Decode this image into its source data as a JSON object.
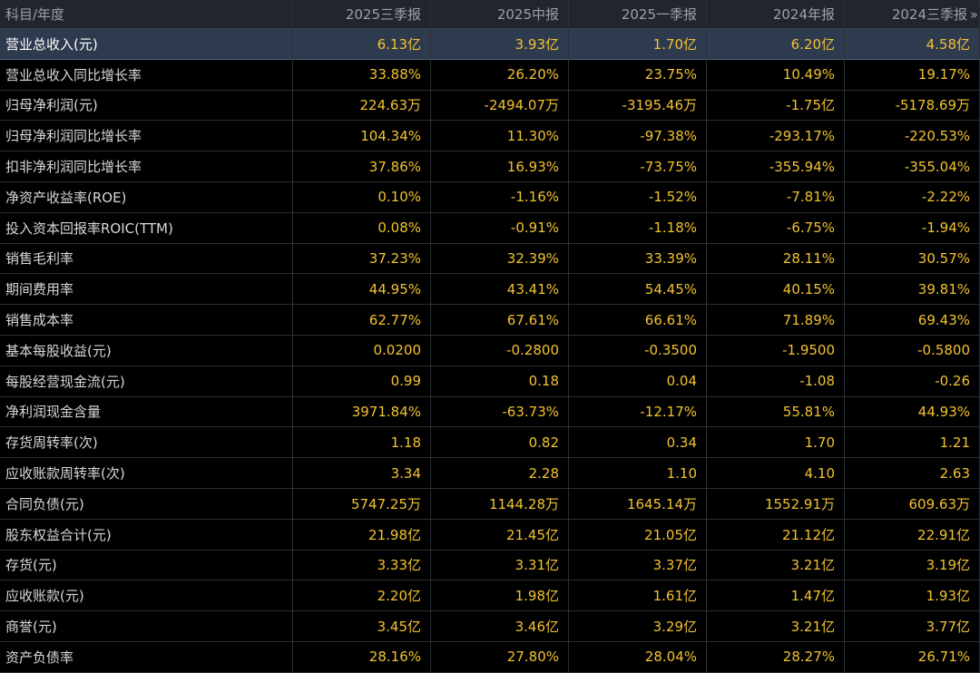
{
  "table": {
    "header": {
      "subject": "科目/年度",
      "columns": [
        "2025三季报",
        "2025中报",
        "2025一季报",
        "2024年报",
        "2024三季报"
      ],
      "more_icon": "double-chevron-right-icon"
    },
    "selected_row": 0,
    "rows": [
      {
        "label": "营业总收入(元)",
        "values": [
          "6.13亿",
          "3.93亿",
          "1.70亿",
          "6.20亿",
          "4.58亿"
        ]
      },
      {
        "label": "营业总收入同比增长率",
        "values": [
          "33.88%",
          "26.20%",
          "23.75%",
          "10.49%",
          "19.17%"
        ]
      },
      {
        "label": "归母净利润(元)",
        "values": [
          "224.63万",
          "-2494.07万",
          "-3195.46万",
          "-1.75亿",
          "-5178.69万"
        ]
      },
      {
        "label": "归母净利润同比增长率",
        "values": [
          "104.34%",
          "11.30%",
          "-97.38%",
          "-293.17%",
          "-220.53%"
        ]
      },
      {
        "label": "扣非净利润同比增长率",
        "values": [
          "37.86%",
          "16.93%",
          "-73.75%",
          "-355.94%",
          "-355.04%"
        ]
      },
      {
        "label": "净资产收益率(ROE)",
        "values": [
          "0.10%",
          "-1.16%",
          "-1.52%",
          "-7.81%",
          "-2.22%"
        ]
      },
      {
        "label": "投入资本回报率ROIC(TTM)",
        "values": [
          "0.08%",
          "-0.91%",
          "-1.18%",
          "-6.75%",
          "-1.94%"
        ]
      },
      {
        "label": "销售毛利率",
        "values": [
          "37.23%",
          "32.39%",
          "33.39%",
          "28.11%",
          "30.57%"
        ]
      },
      {
        "label": "期间费用率",
        "values": [
          "44.95%",
          "43.41%",
          "54.45%",
          "40.15%",
          "39.81%"
        ]
      },
      {
        "label": "销售成本率",
        "values": [
          "62.77%",
          "67.61%",
          "66.61%",
          "71.89%",
          "69.43%"
        ]
      },
      {
        "label": "基本每股收益(元)",
        "values": [
          "0.0200",
          "-0.2800",
          "-0.3500",
          "-1.9500",
          "-0.5800"
        ]
      },
      {
        "label": "每股经营现金流(元)",
        "values": [
          "0.99",
          "0.18",
          "0.04",
          "-1.08",
          "-0.26"
        ]
      },
      {
        "label": "净利润现金含量",
        "values": [
          "3971.84%",
          "-63.73%",
          "-12.17%",
          "55.81%",
          "44.93%"
        ]
      },
      {
        "label": "存货周转率(次)",
        "values": [
          "1.18",
          "0.82",
          "0.34",
          "1.70",
          "1.21"
        ]
      },
      {
        "label": "应收账款周转率(次)",
        "values": [
          "3.34",
          "2.28",
          "1.10",
          "4.10",
          "2.63"
        ]
      },
      {
        "label": "合同负债(元)",
        "values": [
          "5747.25万",
          "1144.28万",
          "1645.14万",
          "1552.91万",
          "609.63万"
        ]
      },
      {
        "label": "股东权益合计(元)",
        "values": [
          "21.98亿",
          "21.45亿",
          "21.05亿",
          "21.12亿",
          "22.91亿"
        ]
      },
      {
        "label": "存货(元)",
        "values": [
          "3.33亿",
          "3.31亿",
          "3.37亿",
          "3.21亿",
          "3.19亿"
        ]
      },
      {
        "label": "应收账款(元)",
        "values": [
          "2.20亿",
          "1.98亿",
          "1.61亿",
          "1.47亿",
          "1.93亿"
        ]
      },
      {
        "label": "商誉(元)",
        "values": [
          "3.45亿",
          "3.46亿",
          "3.29亿",
          "3.21亿",
          "3.77亿"
        ]
      },
      {
        "label": "资产负债率",
        "values": [
          "28.16%",
          "27.80%",
          "28.04%",
          "28.27%",
          "26.71%"
        ]
      }
    ]
  },
  "colors": {
    "background": "#000000",
    "header_bg": "#22262c",
    "header_text": "#9aa0a8",
    "label_text": "#d8d8d8",
    "value_text": "#f2c230",
    "selected_row_bg": "#2e3a4e",
    "grid_line": "#2a3038"
  }
}
